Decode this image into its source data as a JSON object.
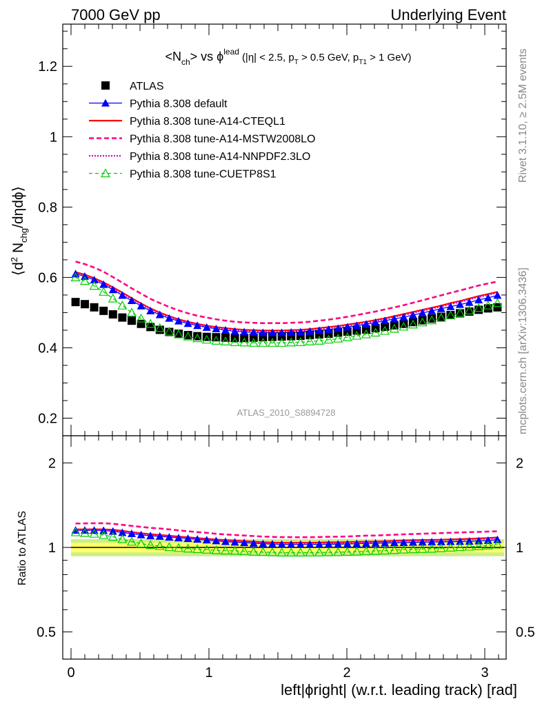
{
  "header": {
    "left": "7000 GeV pp",
    "right": "Underlying Event"
  },
  "side": {
    "rivet": "Rivet 3.1.10, ≥ 2.5M events",
    "mcplots": "mcplots.cern.ch [arXiv:1306.3436]"
  },
  "watermark": "ATLAS_2010_S8894728",
  "colors": {
    "data": "#000000",
    "default": "#0000ff",
    "cteql1": "#ff0000",
    "mstw": "#ff0080",
    "nnpdf": "#cc00cc",
    "cuetp8s1": "#00cc00",
    "band_inner": "#ffff66",
    "band_outer": "#ccee88"
  },
  "chart_data": [
    {
      "type": "scatter",
      "title_parts": {
        "main": "<N",
        "sub1": "ch",
        "mid": "> vs ϕ",
        "sup": "lead",
        "cuts_a": "(|η| < 2.5, p",
        "sub2": "T",
        "cuts_b": " > 0.5 GeV, p",
        "sub3": "T1",
        "cuts_c": " > 1 GeV)"
      },
      "ylabel_parts": {
        "a": "⟨d",
        "sup": "2",
        "b": " N",
        "sub": "chg",
        "c": "/dηdϕ⟩"
      },
      "xlim": [
        -0.1,
        3.2
      ],
      "ylim": [
        0.15,
        1.32
      ],
      "yticks": [
        0.2,
        0.4,
        0.6,
        0.8,
        1,
        1.2
      ],
      "ytick_labels": [
        "0.2",
        "0.4",
        "0.6",
        "0.8",
        "1",
        "1.2"
      ],
      "x": [
        0.033,
        0.1,
        0.168,
        0.236,
        0.304,
        0.372,
        0.44,
        0.508,
        0.576,
        0.644,
        0.712,
        0.78,
        0.848,
        0.916,
        0.984,
        1.052,
        1.12,
        1.188,
        1.256,
        1.324,
        1.392,
        1.46,
        1.528,
        1.596,
        1.664,
        1.732,
        1.8,
        1.868,
        1.936,
        2.004,
        2.072,
        2.14,
        2.208,
        2.276,
        2.344,
        2.412,
        2.48,
        2.548,
        2.616,
        2.684,
        2.752,
        2.82,
        2.888,
        2.956,
        3.024,
        3.092
      ],
      "series": [
        {
          "name": "ATLAS",
          "style": "data",
          "values": [
            0.53,
            0.524,
            0.515,
            0.505,
            0.495,
            0.486,
            0.477,
            0.468,
            0.459,
            0.451,
            0.445,
            0.44,
            0.436,
            0.433,
            0.431,
            0.43,
            0.429,
            0.428,
            0.428,
            0.429,
            0.43,
            0.431,
            0.432,
            0.433,
            0.434,
            0.436,
            0.438,
            0.44,
            0.443,
            0.446,
            0.449,
            0.452,
            0.456,
            0.46,
            0.464,
            0.468,
            0.473,
            0.478,
            0.483,
            0.488,
            0.493,
            0.498,
            0.503,
            0.508,
            0.512,
            0.515
          ]
        },
        {
          "name": "Pythia 8.308 default",
          "style": "default",
          "values": [
            0.61,
            0.603,
            0.593,
            0.58,
            0.565,
            0.549,
            0.534,
            0.519,
            0.505,
            0.494,
            0.484,
            0.476,
            0.469,
            0.463,
            0.458,
            0.454,
            0.45,
            0.447,
            0.445,
            0.444,
            0.443,
            0.443,
            0.443,
            0.444,
            0.445,
            0.447,
            0.449,
            0.452,
            0.455,
            0.459,
            0.463,
            0.467,
            0.472,
            0.477,
            0.482,
            0.487,
            0.493,
            0.499,
            0.505,
            0.511,
            0.517,
            0.523,
            0.529,
            0.536,
            0.542,
            0.549
          ]
        },
        {
          "name": "Pythia 8.308 tune-A14-CTEQL1",
          "style": "cteql1",
          "values": [
            0.615,
            0.608,
            0.598,
            0.586,
            0.572,
            0.557,
            0.541,
            0.526,
            0.512,
            0.5,
            0.49,
            0.481,
            0.474,
            0.468,
            0.463,
            0.459,
            0.456,
            0.453,
            0.451,
            0.45,
            0.449,
            0.449,
            0.449,
            0.45,
            0.451,
            0.453,
            0.456,
            0.459,
            0.462,
            0.466,
            0.47,
            0.474,
            0.479,
            0.484,
            0.49,
            0.496,
            0.502,
            0.508,
            0.514,
            0.52,
            0.527,
            0.533,
            0.54,
            0.547,
            0.553,
            0.559
          ]
        },
        {
          "name": "Pythia 8.308 tune-A14-MSTW2008LO",
          "style": "mstw",
          "values": [
            0.645,
            0.638,
            0.628,
            0.616,
            0.601,
            0.585,
            0.569,
            0.554,
            0.539,
            0.527,
            0.516,
            0.506,
            0.498,
            0.491,
            0.486,
            0.481,
            0.477,
            0.474,
            0.472,
            0.471,
            0.47,
            0.47,
            0.47,
            0.471,
            0.472,
            0.474,
            0.477,
            0.48,
            0.484,
            0.488,
            0.493,
            0.498,
            0.503,
            0.509,
            0.515,
            0.521,
            0.528,
            0.535,
            0.542,
            0.549,
            0.556,
            0.563,
            0.57,
            0.577,
            0.583,
            0.588
          ]
        },
        {
          "name": "Pythia 8.308 tune-A14-NNPDF2.3LO",
          "style": "nnpdf",
          "values": [
            0.612,
            0.605,
            0.595,
            0.583,
            0.569,
            0.554,
            0.539,
            0.524,
            0.51,
            0.498,
            0.488,
            0.479,
            0.472,
            0.466,
            0.461,
            0.457,
            0.453,
            0.45,
            0.448,
            0.447,
            0.446,
            0.446,
            0.446,
            0.447,
            0.448,
            0.45,
            0.453,
            0.456,
            0.459,
            0.463,
            0.467,
            0.471,
            0.476,
            0.481,
            0.487,
            0.493,
            0.499,
            0.505,
            0.511,
            0.517,
            0.524,
            0.53,
            0.537,
            0.544,
            0.55,
            0.556
          ]
        },
        {
          "name": "Pythia 8.308 tune-CUETP8S1",
          "style": "cuetp8s1",
          "values": [
            0.6,
            0.59,
            0.576,
            0.559,
            0.54,
            0.52,
            0.5,
            0.483,
            0.468,
            0.456,
            0.446,
            0.438,
            0.432,
            0.427,
            0.423,
            0.42,
            0.418,
            0.416,
            0.415,
            0.414,
            0.414,
            0.414,
            0.414,
            0.415,
            0.416,
            0.418,
            0.42,
            0.423,
            0.426,
            0.43,
            0.434,
            0.438,
            0.443,
            0.448,
            0.454,
            0.46,
            0.466,
            0.472,
            0.478,
            0.485,
            0.492,
            0.499,
            0.506,
            0.513,
            0.52,
            0.527
          ]
        }
      ]
    },
    {
      "type": "scatter",
      "ylabel": "Ratio to ATLAS",
      "xlabel": "left|ϕright| (w.r.t. leading track) [rad]",
      "xticks": [
        0,
        1,
        2,
        3
      ],
      "xtick_labels": [
        "0",
        "1",
        "2",
        "3"
      ],
      "yticks": [
        0.5,
        1,
        2
      ],
      "ytick_labels": [
        "0.5",
        "1",
        "2"
      ],
      "ylim": [
        0.4,
        2.5
      ],
      "yscale": "log",
      "band": {
        "inner": 0.04,
        "outer": 0.07
      }
    }
  ]
}
